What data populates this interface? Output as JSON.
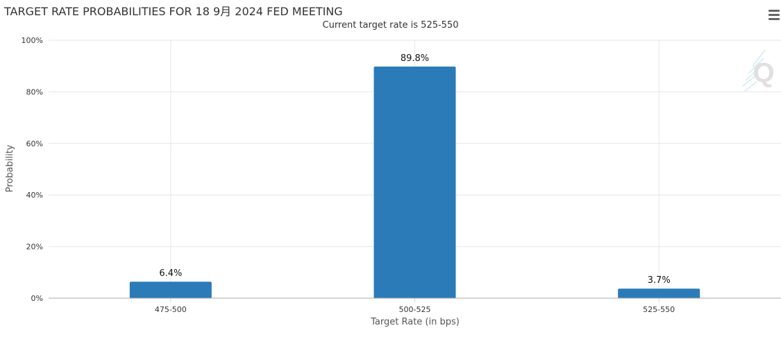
{
  "chart_data": {
    "type": "bar",
    "title": "TARGET RATE PROBABILITIES FOR 18 9月 2024 FED MEETING",
    "subtitle": "Current target rate is 525-550",
    "xlabel": "Target Rate (in bps)",
    "ylabel": "Probability",
    "categories": [
      "475-500",
      "500-525",
      "525-550"
    ],
    "values": [
      6.4,
      89.8,
      3.7
    ],
    "data_labels": [
      "6.4%",
      "89.8%",
      "3.7%"
    ],
    "ylim": [
      0,
      100
    ],
    "yticks": [
      0,
      20,
      40,
      60,
      80,
      100
    ],
    "ytick_labels": [
      "0%",
      "20%",
      "40%",
      "60%",
      "80%",
      "100%"
    ],
    "grid": true,
    "bar_color": "#2b7bb9",
    "watermark": "Q"
  },
  "toolbar": {
    "menu_icon": "hamburger-menu-icon"
  }
}
